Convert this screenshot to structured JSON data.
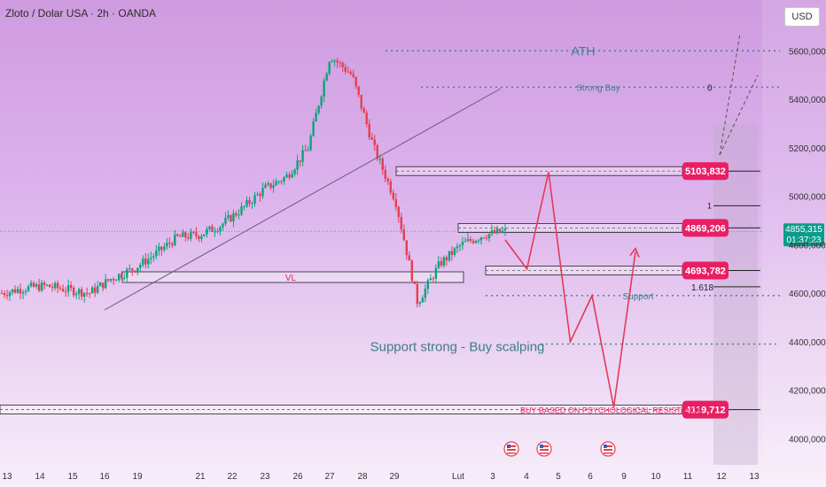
{
  "header": {
    "symbol_title": "Zloto / Dolar USA · 2h · OANDA",
    "currency_button": "USD"
  },
  "chart_data": {
    "type": "candlestick",
    "x_axis_labels": [
      "13",
      "14",
      "15",
      "16",
      "19",
      "21",
      "22",
      "23",
      "26",
      "27",
      "28",
      "29",
      "Lut",
      "3",
      "4",
      "5",
      "6",
      "9",
      "10",
      "11",
      "12",
      "13"
    ],
    "y_axis": {
      "ticks": [
        5600000,
        5400000,
        5200000,
        5000000,
        4800000,
        4600000,
        4400000,
        4200000,
        4000000
      ],
      "tick_labels": [
        "5600,000",
        "5400,000",
        "5200,000",
        "5000,000",
        "4800,000",
        "4600,000",
        "4400,000",
        "4200,000",
        "4000,000"
      ],
      "range": [
        3910000,
        5700000
      ]
    },
    "last_price": {
      "value": 4855315,
      "label": "4855,315",
      "countdown": "01:37:23",
      "color": "#0a9d8d"
    },
    "series_close_approx": [
      [
        0,
        4600000
      ],
      [
        1,
        4620000
      ],
      [
        2,
        4630000
      ],
      [
        3,
        4615000
      ],
      [
        4,
        4600000
      ],
      [
        5,
        4660000
      ],
      [
        6,
        4700000
      ],
      [
        7,
        4760000
      ],
      [
        8,
        4830000
      ],
      [
        9,
        4840000
      ],
      [
        10,
        4880000
      ],
      [
        11,
        4950000
      ],
      [
        12,
        5030000
      ],
      [
        13,
        5080000
      ],
      [
        14,
        5200000
      ],
      [
        15,
        5580000
      ],
      [
        16,
        5500000
      ],
      [
        17,
        5200000
      ],
      [
        18,
        4980000
      ],
      [
        19,
        4560000
      ],
      [
        20,
        4720000
      ],
      [
        21,
        4800000
      ],
      [
        22,
        4840000
      ],
      [
        23,
        4855315
      ]
    ],
    "levels": [
      {
        "label": "ATH",
        "value": 5600000,
        "style": "dotted",
        "color": "#3f7d8c"
      },
      {
        "label": "Strong Buy",
        "value": 5450000,
        "style": "dotted",
        "color": "#3f7d8c",
        "fib": "0"
      },
      {
        "label": "",
        "value": 5103832,
        "price_tag": "5103,832",
        "style": "zone",
        "color": "#e91e63"
      },
      {
        "label": "",
        "value": 4869206,
        "price_tag": "4869,206",
        "style": "zone",
        "color": "#e91e63",
        "fib": "1"
      },
      {
        "label": "",
        "value": 4693782,
        "price_tag": "4693,782",
        "style": "zone",
        "color": "#e91e63"
      },
      {
        "label": "Support",
        "value": 4590000,
        "style": "dotted",
        "color": "#3f7d8c",
        "fib": "1.618"
      },
      {
        "label": "Support strong - Buy scalping",
        "value": 4390000,
        "style": "dotted",
        "color": "#3f7d8c"
      },
      {
        "label": "BUY BASED ON PSYCHOLOGICAL RESISTANCE",
        "value": 4119712,
        "price_tag": "4119,712",
        "style": "zone",
        "color": "#e91e63"
      }
    ],
    "annotations": {
      "vl_zone_label": "VL",
      "fib_labels": [
        "0",
        "1",
        "1.618"
      ]
    },
    "projection_paths": [
      {
        "name": "path-a",
        "points": [
          [
            13,
            4820000
          ],
          [
            14,
            4700000
          ],
          [
            15,
            5100000
          ],
          [
            16,
            4400000
          ],
          [
            17,
            4590000
          ],
          [
            18,
            4130000
          ],
          [
            19,
            4770000
          ]
        ],
        "color": "#e53957"
      }
    ],
    "event_markers": [
      "us-flag-icon",
      "us-flag-icon",
      "us-flag-icon"
    ],
    "colors": {
      "up": "#0aa37d",
      "down": "#e53e4f",
      "trendline": "#6a5b7b",
      "zone_fill": "rgba(255,255,255,0.35)"
    }
  }
}
